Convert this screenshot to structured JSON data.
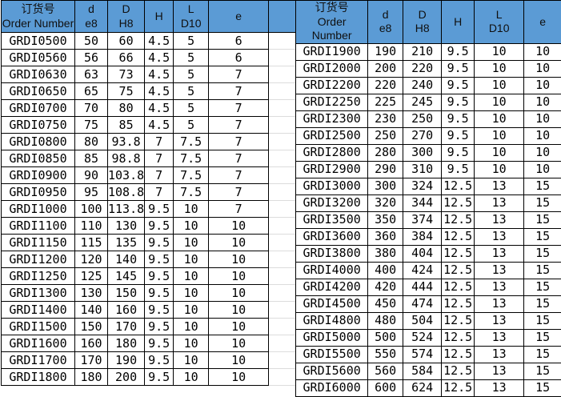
{
  "style": {
    "header_background": "#5b9bd5",
    "header_text_color": "#101010",
    "grid_color": "#000000",
    "gap_gridline_color": "#dcdcdc"
  },
  "columns": [
    {
      "line1": "订货号",
      "line2": "Order Number"
    },
    {
      "line1": "d",
      "line2": "e8"
    },
    {
      "line1": "D",
      "line2": "H8"
    },
    {
      "line1": "H",
      "line2": ""
    },
    {
      "line1": "L",
      "line2": "D10"
    },
    {
      "line1": "e",
      "line2": ""
    }
  ],
  "tables": [
    {
      "name": "left",
      "rows": [
        [
          "GRDI0500",
          "50",
          "60",
          "4.5",
          "5",
          "6"
        ],
        [
          "GRDI0560",
          "56",
          "66",
          "4.5",
          "5",
          "6"
        ],
        [
          "GRDI0630",
          "63",
          "73",
          "4.5",
          "5",
          "7"
        ],
        [
          "GRDI0650",
          "65",
          "75",
          "4.5",
          "5",
          "7"
        ],
        [
          "GRDI0700",
          "70",
          "80",
          "4.5",
          "5",
          "7"
        ],
        [
          "GRDI0750",
          "75",
          "85",
          "4.5",
          "5",
          "7"
        ],
        [
          "GRDI0800",
          "80",
          "93.8",
          "7",
          "7.5",
          "7"
        ],
        [
          "GRDI0850",
          "85",
          "98.8",
          "7",
          "7.5",
          "7"
        ],
        [
          "GRDI0900",
          "90",
          "103.8",
          "7",
          "7.5",
          "7"
        ],
        [
          "GRDI0950",
          "95",
          "108.8",
          "7",
          "7.5",
          "7"
        ],
        [
          "GRDI1000",
          "100",
          "113.8",
          "9.5",
          "10",
          "7"
        ],
        [
          "GRDI1100",
          "110",
          "130",
          "9.5",
          "10",
          "10"
        ],
        [
          "GRDI1150",
          "115",
          "135",
          "9.5",
          "10",
          "10"
        ],
        [
          "GRDI1200",
          "120",
          "140",
          "9.5",
          "10",
          "10"
        ],
        [
          "GRDI1250",
          "125",
          "145",
          "9.5",
          "10",
          "10"
        ],
        [
          "GRDI1300",
          "130",
          "150",
          "9.5",
          "10",
          "10"
        ],
        [
          "GRDI1400",
          "140",
          "160",
          "9.5",
          "10",
          "10"
        ],
        [
          "GRDI1500",
          "150",
          "170",
          "9.5",
          "10",
          "10"
        ],
        [
          "GRDI1600",
          "160",
          "180",
          "9.5",
          "10",
          "10"
        ],
        [
          "GRDI1700",
          "170",
          "190",
          "9.5",
          "10",
          "10"
        ],
        [
          "GRDI1800",
          "180",
          "200",
          "9.5",
          "10",
          "10"
        ]
      ]
    },
    {
      "name": "right",
      "rows": [
        [
          "GRDI1900",
          "190",
          "210",
          "9.5",
          "10",
          "10"
        ],
        [
          "GRDI2000",
          "200",
          "220",
          "9.5",
          "10",
          "10"
        ],
        [
          "GRDI2200",
          "220",
          "240",
          "9.5",
          "10",
          "10"
        ],
        [
          "GRDI2250",
          "225",
          "245",
          "9.5",
          "10",
          "10"
        ],
        [
          "GRDI2300",
          "230",
          "250",
          "9.5",
          "10",
          "10"
        ],
        [
          "GRDI2500",
          "250",
          "270",
          "9.5",
          "10",
          "10"
        ],
        [
          "GRDI2800",
          "280",
          "300",
          "9.5",
          "10",
          "10"
        ],
        [
          "GRDI2900",
          "290",
          "310",
          "9.5",
          "10",
          "10"
        ],
        [
          "GRDI3000",
          "300",
          "324",
          "12.5",
          "13",
          "15"
        ],
        [
          "GRDI3200",
          "320",
          "344",
          "12.5",
          "13",
          "15"
        ],
        [
          "GRDI3500",
          "350",
          "374",
          "12.5",
          "13",
          "15"
        ],
        [
          "GRDI3600",
          "360",
          "384",
          "12.5",
          "13",
          "15"
        ],
        [
          "GRDI3800",
          "380",
          "404",
          "12.5",
          "13",
          "15"
        ],
        [
          "GRDI4000",
          "400",
          "424",
          "12.5",
          "13",
          "15"
        ],
        [
          "GRDI4200",
          "420",
          "444",
          "12.5",
          "13",
          "15"
        ],
        [
          "GRDI4500",
          "450",
          "474",
          "12.5",
          "13",
          "15"
        ],
        [
          "GRDI4800",
          "480",
          "504",
          "12.5",
          "13",
          "15"
        ],
        [
          "GRDI5000",
          "500",
          "524",
          "12.5",
          "13",
          "15"
        ],
        [
          "GRDI5500",
          "550",
          "574",
          "12.5",
          "13",
          "15"
        ],
        [
          "GRDI5600",
          "560",
          "584",
          "12.5",
          "13",
          "15"
        ],
        [
          "GRDI6000",
          "600",
          "624",
          "12.5",
          "13",
          "15"
        ]
      ]
    }
  ]
}
